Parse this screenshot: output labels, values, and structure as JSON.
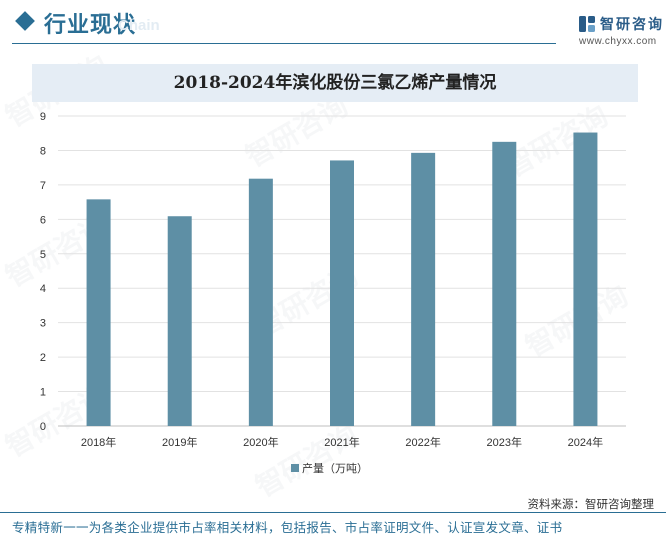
{
  "header": {
    "section_title": "行业现状",
    "section_subtitle": "Chain",
    "logo_name": "智研咨询",
    "logo_url": "www.chyxx.com"
  },
  "chart_data": {
    "type": "bar",
    "title": "2018-2024年滨化股份三氯乙烯产量情况",
    "categories": [
      "2018年",
      "2019年",
      "2020年",
      "2021年",
      "2022年",
      "2023年",
      "2024年"
    ],
    "series": [
      {
        "name": "产量（万吨）",
        "values": [
          6.58,
          6.09,
          7.18,
          7.71,
          7.93,
          8.25,
          8.52
        ]
      }
    ],
    "ylim": [
      0,
      9
    ],
    "yticks": [
      0,
      1,
      2,
      3,
      4,
      5,
      6,
      7,
      8,
      9
    ],
    "xlabel": "",
    "ylabel": "",
    "grid": true,
    "legend_position": "bottom",
    "bar_color": "#5e8fa5"
  },
  "footer": {
    "source": "资料来源：智研咨询整理",
    "tagline": "专精特新一一为各类企业提供市占率相关材料，包括报告、市占率证明文件、认证宣发文章、证书"
  },
  "watermark": "智研咨询"
}
